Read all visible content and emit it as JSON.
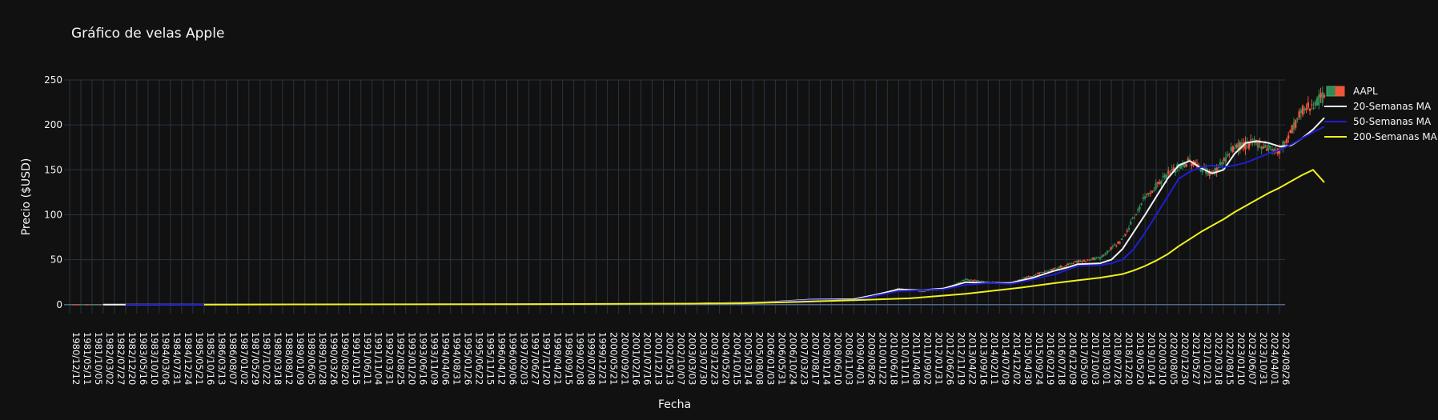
{
  "chart_data": {
    "type": "line",
    "title": "Gráfico de velas Apple",
    "xlabel": "Fecha",
    "ylabel": "Precio ($USD)",
    "ylim": [
      -10,
      250
    ],
    "yticks": [
      0,
      50,
      100,
      150,
      200,
      250
    ],
    "grid": true,
    "legend_position": "top-right",
    "colors": {
      "background": "#111111",
      "grid": "#283442",
      "candle_up": "#2e8b57",
      "candle_down": "#ef553b",
      "ma20": "#f0f0f0",
      "ma50": "#1e1ed2",
      "ma200": "#f0f01e",
      "text": "#f2f5fa"
    },
    "xtick_labels": [
      "1980/12/12",
      "1981/05/11",
      "1981/10/05",
      "1982/03/02",
      "1982/07/27",
      "1982/12/20",
      "1983/05/16",
      "1983/10/10",
      "1984/03/06",
      "1984/07/31",
      "1984/12/24",
      "1985/05/21",
      "1985/10/16",
      "1986/03/13",
      "1986/08/07",
      "1987/01/02",
      "1987/05/29",
      "1987/10/22",
      "1988/03/18",
      "1988/08/12",
      "1989/01/09",
      "1989/06/05",
      "1989/10/28",
      "1990/03/26",
      "1990/08/20",
      "1991/01/15",
      "1991/06/11",
      "1991/11/04",
      "1992/03/31",
      "1992/08/25",
      "1993/01/20",
      "1993/06/16",
      "1993/11/09",
      "1994/04/06",
      "1994/08/31",
      "1995/01/26",
      "1995/06/22",
      "1995/11/15",
      "1996/04/12",
      "1996/09/06",
      "1997/02/03",
      "1997/06/27",
      "1997/11/20",
      "1998/04/21",
      "1998/09/15",
      "1999/02/08",
      "1999/07/08",
      "1999/12/21",
      "2000/05/21",
      "2000/09/21",
      "2001/02/16",
      "2001/07/16",
      "2001/12/13",
      "2002/05/13",
      "2002/10/07",
      "2003/03/03",
      "2003/07/30",
      "2003/12/23",
      "2004/05/20",
      "2004/10/15",
      "2005/03/14",
      "2005/08/08",
      "2006/01/03",
      "2006/05/31",
      "2006/10/24",
      "2007/03/23",
      "2007/08/17",
      "2008/01/14",
      "2008/06/10",
      "2008/11/03",
      "2009/04/01",
      "2009/08/26",
      "2010/01/22",
      "2010/06/18",
      "2010/11/11",
      "2011/04/08",
      "2011/09/02",
      "2012/01/31",
      "2012/06/26",
      "2012/11/19",
      "2013/04/22",
      "2013/09/16",
      "2014/02/11",
      "2014/07/09",
      "2014/12/02",
      "2015/04/30",
      "2015/09/24",
      "2016/02/19",
      "2016/07/18",
      "2016/12/09",
      "2017/05/09",
      "2017/10/03",
      "2018/03/01",
      "2018/07/26",
      "2018/12/20",
      "2019/05/20",
      "2019/10/14",
      "2020/03/10",
      "2020/08/05",
      "2020/12/30",
      "2021/05/27",
      "2021/10/21",
      "2022/03/18",
      "2022/08/15",
      "2023/01/10",
      "2023/06/07",
      "2023/10/31",
      "2024/04/01",
      "2024/08/26"
    ],
    "series": [
      {
        "name": "AAPL",
        "kind": "candlestick",
        "x": [
          0,
          20,
          40,
          55,
          62,
          66,
          70,
          72,
          74,
          76,
          78,
          80,
          82,
          84,
          86,
          88,
          90,
          92,
          94,
          96,
          98,
          100,
          102,
          104,
          106,
          108,
          110,
          112
        ],
        "values": [
          0.1,
          0.3,
          0.3,
          1.2,
          3,
          6,
          5,
          10,
          18,
          15,
          17,
          28,
          25,
          24,
          33,
          40,
          48,
          52,
          73,
          120,
          145,
          160,
          145,
          175,
          180,
          170,
          215,
          232
        ]
      },
      {
        "name": "20-Semanas MA",
        "kind": "line",
        "x": [
          3,
          20,
          40,
          55,
          62,
          66,
          70,
          72,
          74,
          76,
          78,
          80,
          82,
          84,
          86,
          88,
          89,
          90,
          92,
          93,
          94,
          96,
          98,
          99,
          100,
          101,
          102,
          103,
          104,
          105,
          106,
          107,
          108,
          109,
          110,
          111,
          112
        ],
        "values": [
          0.1,
          0.2,
          0.3,
          0.9,
          2.5,
          5.5,
          6,
          11,
          17,
          16,
          18,
          25,
          24,
          24,
          30,
          38,
          41,
          45,
          46,
          50,
          62,
          100,
          140,
          155,
          160,
          152,
          146,
          150,
          168,
          180,
          182,
          180,
          176,
          177,
          185,
          195,
          208
        ]
      },
      {
        "name": "50-Semanas MA",
        "kind": "line",
        "x": [
          5,
          20,
          40,
          55,
          62,
          66,
          70,
          72,
          74,
          76,
          78,
          80,
          82,
          84,
          86,
          88,
          90,
          92,
          93,
          94,
          95,
          96,
          97,
          98,
          99,
          100,
          101,
          102,
          103,
          104,
          105,
          106,
          107,
          108,
          109,
          110,
          111,
          112
        ],
        "values": [
          0.1,
          0.2,
          0.3,
          0.8,
          2.2,
          5,
          5,
          10,
          15,
          16,
          17,
          22,
          24,
          23,
          28,
          34,
          43,
          44,
          46,
          50,
          62,
          80,
          100,
          120,
          140,
          148,
          153,
          155,
          153,
          155,
          158,
          163,
          168,
          172,
          178,
          185,
          192,
          198
        ]
      },
      {
        "name": "200-Semanas MA",
        "kind": "line",
        "x": [
          12,
          20,
          30,
          40,
          48,
          55,
          60,
          65,
          70,
          75,
          80,
          85,
          88,
          90,
          92,
          94,
          95,
          96,
          97,
          98,
          99,
          100,
          101,
          102,
          103,
          104,
          105,
          106,
          107,
          108,
          109,
          110,
          111,
          112
        ],
        "values": [
          0.1,
          0.2,
          0.3,
          0.5,
          0.8,
          1,
          1.5,
          3,
          5,
          7,
          12,
          19,
          24,
          27,
          30,
          34,
          38,
          43,
          49,
          56,
          65,
          73,
          81,
          88,
          95,
          103,
          110,
          117,
          124,
          130,
          137,
          144,
          150,
          136
        ]
      }
    ]
  }
}
